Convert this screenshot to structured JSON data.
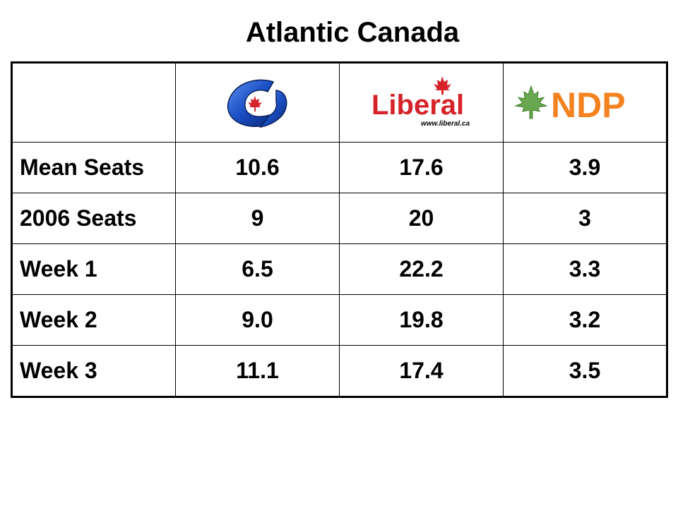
{
  "title": "Atlantic Canada",
  "header": {
    "corner": "",
    "parties": [
      {
        "name": "Conservative",
        "logo": "conservative-logo",
        "color": "#1b4fc4",
        "accent": "#d6232a"
      },
      {
        "name": "Liberal",
        "logo": "liberal-logo",
        "logo_text": "Liberal",
        "logo_url": "www.liberal.ca",
        "color": "#d6232a"
      },
      {
        "name": "NDP",
        "logo": "ndp-logo",
        "logo_text": "NDP",
        "color": "#f58220",
        "leaf_color": "#6aa84f"
      }
    ]
  },
  "rows": [
    {
      "label": "Mean Seats",
      "values": [
        "10.6",
        "17.6",
        "3.9"
      ]
    },
    {
      "label": "2006 Seats",
      "values": [
        "9",
        "20",
        "3"
      ]
    },
    {
      "label": "Week 1",
      "values": [
        "6.5",
        "22.2",
        "3.3"
      ]
    },
    {
      "label": "Week 2",
      "values": [
        "9.0",
        "19.8",
        "3.2"
      ]
    },
    {
      "label": "Week 3",
      "values": [
        "11.1",
        "17.4",
        "3.5"
      ]
    }
  ]
}
